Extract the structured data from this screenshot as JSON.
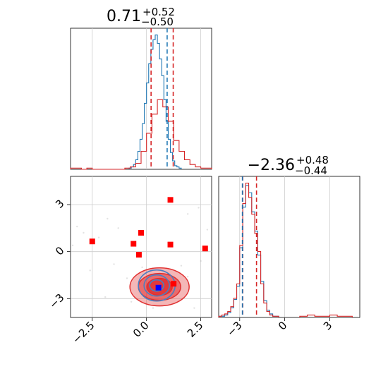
{
  "chart_data": [
    {
      "type": "histogram",
      "panel": "marginal-param-1",
      "title": {
        "value": "0.71",
        "plus": "+0.52",
        "minus": "−0.50"
      },
      "xlim": [
        -3.5,
        3.0
      ],
      "grid": true,
      "red_dashed_lines": [
        0.21,
        1.23
      ],
      "blue_dashed_line": 0.95,
      "series": [
        {
          "color": "#1f77b4",
          "bin_edges": [
            -0.8,
            -0.7,
            -0.6,
            -0.5,
            -0.4,
            -0.3,
            -0.2,
            -0.1,
            0.0,
            0.1,
            0.2,
            0.3,
            0.4,
            0.5,
            0.6,
            0.7,
            0.8,
            0.9,
            1.0,
            1.1,
            1.2,
            1.3,
            1.4,
            1.5,
            1.6
          ],
          "counts": [
            1,
            2,
            4,
            8,
            15,
            25,
            38,
            55,
            72,
            88,
            100,
            108,
            112,
            105,
            92,
            78,
            58,
            40,
            25,
            14,
            7,
            3,
            2,
            1
          ]
        },
        {
          "color": "#d62728",
          "bin_edges": [
            -3.5,
            -3.25,
            -3.0,
            -2.75,
            -2.5,
            -2.25,
            -2.0,
            -1.75,
            -1.5,
            -1.25,
            -1.0,
            -0.75,
            -0.5,
            -0.25,
            0.0,
            0.25,
            0.5,
            0.75,
            1.0,
            1.25,
            1.5,
            1.75,
            2.0,
            2.25,
            2.5,
            2.75,
            3.0
          ],
          "counts": [
            1,
            1,
            0,
            1,
            0,
            0,
            0,
            0,
            0,
            0,
            1,
            2,
            5,
            15,
            30,
            46,
            58,
            52,
            40,
            24,
            15,
            8,
            4,
            2,
            1,
            1
          ]
        }
      ]
    },
    {
      "type": "scatter",
      "panel": "joint-param-1-param-2",
      "xlim": [
        -3.5,
        3.0
      ],
      "ylim": [
        -4.2,
        4.8
      ],
      "xticks": [
        "−2.5",
        "0.0",
        "2.5"
      ],
      "yticks": [
        "3",
        "0",
        "−3"
      ],
      "grid": true,
      "red_markers": [
        [
          -2.5,
          0.65
        ],
        [
          -0.6,
          0.5
        ],
        [
          -0.35,
          -0.2
        ],
        [
          -0.25,
          1.2
        ],
        [
          1.1,
          3.3
        ],
        [
          1.1,
          0.45
        ],
        [
          2.7,
          0.2
        ],
        [
          1.25,
          -2.05
        ]
      ],
      "blue_marker": [
        0.55,
        -2.3
      ],
      "contours": {
        "center": [
          0.6,
          -2.25
        ],
        "red_filled_levels": 3,
        "blue_outline_levels": 3
      },
      "point_cloud": [
        [
          -3.2,
          1.6
        ],
        [
          -2.9,
          1.2
        ],
        [
          -3.4,
          0.4
        ],
        [
          -2.2,
          0.9
        ],
        [
          -1.8,
          2.1
        ],
        [
          -1.3,
          1.5
        ],
        [
          -2.6,
          -1.2
        ],
        [
          -1.5,
          -0.8
        ],
        [
          2.4,
          2.8
        ],
        [
          2.8,
          1.4
        ],
        [
          2.5,
          -0.6
        ],
        [
          1.9,
          2.4
        ],
        [
          -1.9,
          -2.9
        ],
        [
          2.2,
          -3.6
        ],
        [
          -0.2,
          -1.0
        ],
        [
          1.6,
          -0.9
        ],
        [
          -0.9,
          -1.7
        ],
        [
          1.9,
          -1.6
        ],
        [
          0.3,
          -3.6
        ],
        [
          -0.7,
          -3.2
        ]
      ]
    },
    {
      "type": "histogram",
      "panel": "marginal-param-2",
      "title": {
        "value": "−2.36",
        "plus": "+0.48",
        "minus": "−0.44"
      },
      "xlim": [
        -4.4,
        5.0
      ],
      "xticks": [
        "−3",
        "0",
        "3"
      ],
      "grid": true,
      "red_dashed_lines": [
        -2.8,
        -1.88
      ],
      "blue_dashed_line": -2.82,
      "series": [
        {
          "color": "#1f77b4",
          "bin_edges": [
            -4.4,
            -4.2,
            -4.0,
            -3.8,
            -3.6,
            -3.4,
            -3.2,
            -3.0,
            -2.8,
            -2.6,
            -2.4,
            -2.2,
            -2.0,
            -1.8,
            -1.6,
            -1.4,
            -1.2,
            -1.0,
            -0.8,
            -0.6,
            -0.4
          ],
          "counts": [
            1,
            1,
            2,
            4,
            8,
            15,
            26,
            58,
            92,
            110,
            104,
            88,
            72,
            52,
            30,
            14,
            6,
            3,
            1,
            1
          ]
        },
        {
          "color": "#d62728",
          "bin_edges": [
            -4.4,
            -4.2,
            -4.0,
            -3.8,
            -3.6,
            -3.4,
            -3.2,
            -3.0,
            -2.8,
            -2.6,
            -2.4,
            -2.2,
            -2.0,
            -1.8,
            -1.6,
            -1.4,
            -1.2,
            -1.0,
            -0.8,
            -0.6,
            -0.4
          ],
          "counts": [
            1,
            2,
            3,
            5,
            9,
            16,
            28,
            60,
            95,
            112,
            100,
            86,
            70,
            55,
            28,
            12,
            5,
            2,
            1,
            1
          ]
        },
        {
          "color": "#d62728",
          "bin_edges": [
            1.0,
            1.5,
            2.0,
            2.5,
            3.0,
            3.5,
            4.0,
            4.5
          ],
          "counts": [
            1,
            2,
            1,
            1,
            2,
            1,
            1
          ]
        }
      ]
    }
  ]
}
